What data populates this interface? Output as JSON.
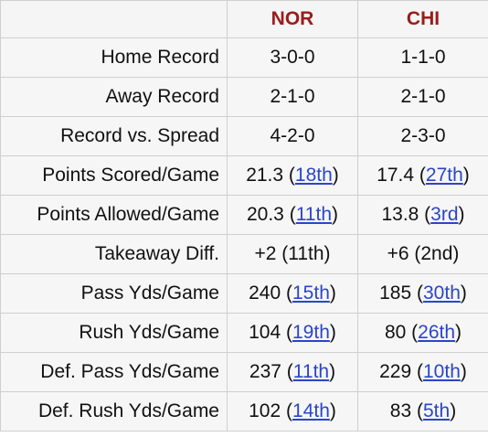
{
  "header": {
    "team1": "NOR",
    "team2": "CHI"
  },
  "rows": [
    {
      "label": "Home Record",
      "nor": {
        "value": "3-0-0"
      },
      "chi": {
        "value": "1-1-0"
      }
    },
    {
      "label": "Away Record",
      "nor": {
        "value": "2-1-0"
      },
      "chi": {
        "value": "2-1-0"
      }
    },
    {
      "label": "Record vs. Spread",
      "nor": {
        "value": "4-2-0"
      },
      "chi": {
        "value": "2-3-0"
      }
    },
    {
      "label": "Points Scored/Game",
      "nor": {
        "value": "21.3",
        "rank": "18th"
      },
      "chi": {
        "value": "17.4",
        "rank": "27th"
      }
    },
    {
      "label": "Points Allowed/Game",
      "nor": {
        "value": "20.3",
        "rank": "11th"
      },
      "chi": {
        "value": "13.8",
        "rank": "3rd"
      }
    },
    {
      "label": "Takeaway Diff.",
      "nor": {
        "value": "+2",
        "rank": "11th"
      },
      "chi": {
        "value": "+6",
        "rank": "2nd"
      }
    },
    {
      "label": "Pass Yds/Game",
      "nor": {
        "value": "240",
        "rank": "15th"
      },
      "chi": {
        "value": "185",
        "rank": "30th"
      }
    },
    {
      "label": "Rush Yds/Game",
      "nor": {
        "value": "104",
        "rank": "19th"
      },
      "chi": {
        "value": "80",
        "rank": "26th"
      }
    },
    {
      "label": "Def. Pass Yds/Game",
      "nor": {
        "value": "237",
        "rank": "11th"
      },
      "chi": {
        "value": "229",
        "rank": "10th"
      }
    },
    {
      "label": "Def. Rush Yds/Game",
      "nor": {
        "value": "102",
        "rank": "14th"
      },
      "chi": {
        "value": "83",
        "rank": "5th"
      }
    }
  ],
  "colors": {
    "header_text": "#9b1b1b",
    "link": "#2a45c9",
    "cell_bg": "#f6f6f6",
    "border": "#cfcfcf"
  }
}
